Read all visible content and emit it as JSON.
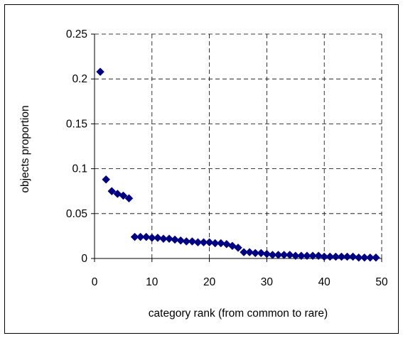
{
  "chart_data": {
    "type": "scatter",
    "title": "",
    "xlabel": "category rank (from common to rare)",
    "ylabel": "objects proportion",
    "xlim": [
      0,
      50
    ],
    "ylim": [
      0,
      0.25
    ],
    "x_ticks": [
      0,
      10,
      20,
      30,
      40,
      50
    ],
    "y_ticks": [
      0,
      0.05,
      0.1,
      0.15,
      0.2,
      0.25
    ],
    "x_tick_labels": [
      "0",
      "10",
      "20",
      "30",
      "40",
      "50"
    ],
    "y_tick_labels": [
      "0",
      "0.05",
      "0.1",
      "0.15",
      "0.2",
      "0.25"
    ],
    "grid": "dashed, both axes",
    "legend": "none",
    "marker": "diamond",
    "marker_color": "#000080",
    "series": [
      {
        "x": [
          1,
          2,
          3,
          4,
          5,
          6,
          7,
          8,
          9,
          10,
          11,
          12,
          13,
          14,
          15,
          16,
          17,
          18,
          19,
          20,
          21,
          22,
          23,
          24,
          25,
          26,
          27,
          28,
          29,
          30,
          31,
          32,
          33,
          34,
          35,
          36,
          37,
          38,
          39,
          40,
          41,
          42,
          43,
          44,
          45,
          46,
          47,
          48,
          49
        ],
        "y": [
          0.208,
          0.088,
          0.075,
          0.072,
          0.07,
          0.067,
          0.024,
          0.024,
          0.024,
          0.023,
          0.023,
          0.022,
          0.022,
          0.021,
          0.02,
          0.019,
          0.019,
          0.018,
          0.018,
          0.018,
          0.017,
          0.017,
          0.016,
          0.014,
          0.012,
          0.007,
          0.007,
          0.006,
          0.006,
          0.005,
          0.004,
          0.004,
          0.004,
          0.004,
          0.003,
          0.003,
          0.003,
          0.003,
          0.003,
          0.002,
          0.002,
          0.002,
          0.002,
          0.002,
          0.002,
          0.001,
          0.001,
          0.001,
          0.001
        ]
      }
    ]
  }
}
